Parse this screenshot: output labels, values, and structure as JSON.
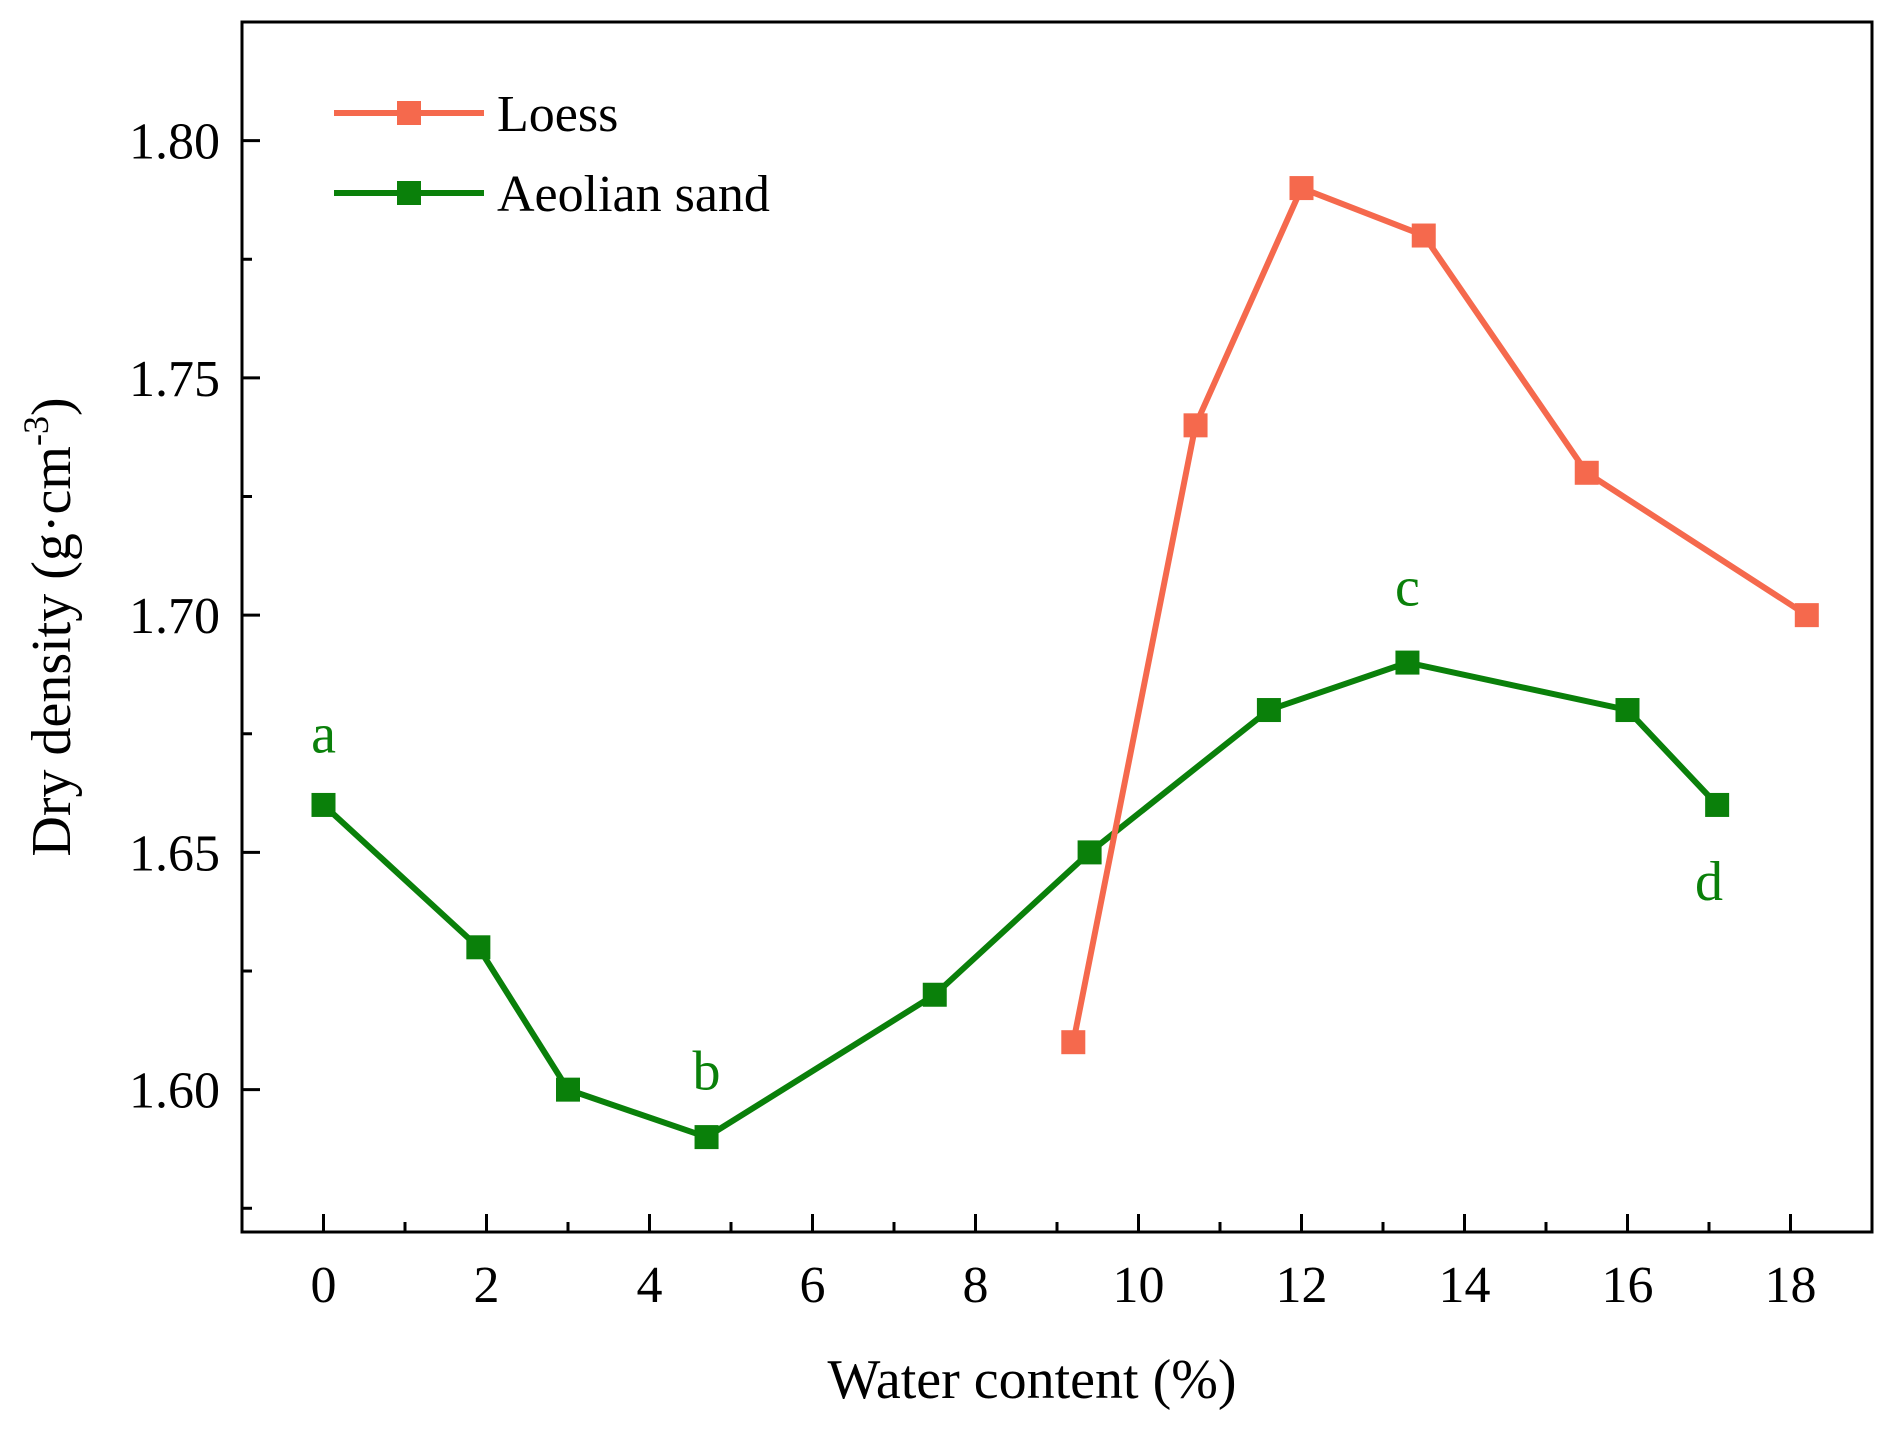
{
  "chart_data": {
    "type": "line",
    "xlabel": "Water content (%)",
    "ylabel": "Dry density (g·cm",
    "ylabel_superscript": "-3",
    "ylabel_close": ")",
    "xlim": [
      -1,
      19
    ],
    "ylim": [
      1.57,
      1.825
    ],
    "xticks": [
      0,
      2,
      4,
      6,
      8,
      10,
      12,
      14,
      16,
      18
    ],
    "xtick_labels": [
      "0",
      "2",
      "4",
      "6",
      "8",
      "10",
      "12",
      "14",
      "16",
      "18"
    ],
    "yticks": [
      1.6,
      1.65,
      1.7,
      1.75,
      1.8
    ],
    "ytick_labels": [
      "1.60",
      "1.65",
      "1.70",
      "1.75",
      "1.80"
    ],
    "grid": false,
    "legend_position": "top-left",
    "series": [
      {
        "name": "Loess",
        "color": "#f5694d",
        "marker": "square",
        "x": [
          9.2,
          10.7,
          12.0,
          13.5,
          15.5,
          18.2
        ],
        "y": [
          1.61,
          1.74,
          1.79,
          1.78,
          1.73,
          1.7
        ]
      },
      {
        "name": "Aeolian sand",
        "color": "#0a800a",
        "marker": "square",
        "x": [
          0.0,
          1.9,
          3.0,
          4.7,
          7.5,
          9.4,
          11.6,
          13.3,
          16.0,
          17.1
        ],
        "y": [
          1.66,
          1.63,
          1.6,
          1.59,
          1.62,
          1.65,
          1.68,
          1.69,
          1.68,
          1.66
        ]
      }
    ],
    "annotations": [
      {
        "text": "a",
        "x": 0.0,
        "y": 1.671,
        "color": "#0a800a"
      },
      {
        "text": "b",
        "x": 4.7,
        "y": 1.6,
        "color": "#0a800a"
      },
      {
        "text": "c",
        "x": 13.3,
        "y": 1.702,
        "color": "#0a800a"
      },
      {
        "text": "d",
        "x": 17.0,
        "y": 1.64,
        "color": "#0a800a"
      }
    ]
  }
}
